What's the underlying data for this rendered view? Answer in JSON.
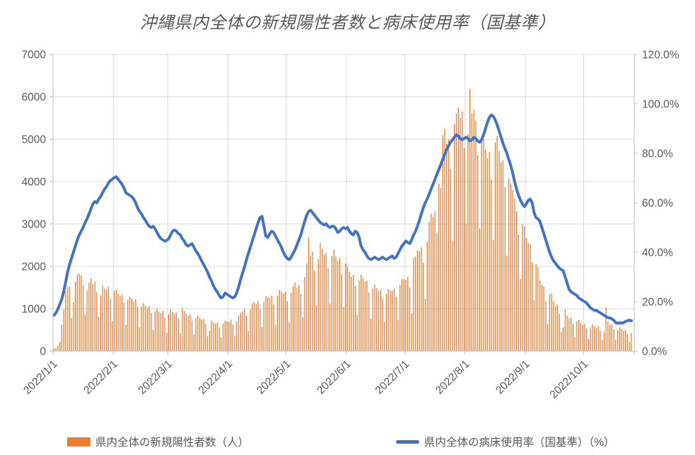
{
  "title": "沖縄県内全体の新規陽性者数と病床使用率（国基準）",
  "legend": {
    "items": [
      {
        "label": "県内全体の新規陽性者数（人）",
        "marker": "bar",
        "color": "#ED7D31"
      },
      {
        "label": "県内全体の病床使用率（国基準）（%）",
        "marker": "line",
        "color": "#4472C4"
      }
    ]
  },
  "colors": {
    "bar": "#ED7D31",
    "line": "#4472C4",
    "gridline": "#D9D9D9",
    "axis_line": "#BFBFBF",
    "tick_label": "#595959",
    "title": "#595959"
  },
  "chart_data": {
    "type": "combo (bar + line, dual axis)",
    "title": "沖縄県内全体の新規陽性者数と病床使用率（国基準）",
    "start_date": "2022/1/1",
    "n_days": 298,
    "grid": true,
    "legend_position": "bottom",
    "x_tick_labels": [
      "2022/1/1",
      "2022/2/1",
      "2022/3/1",
      "2022/4/1",
      "2022/5/1",
      "2022/6/1",
      "2022/7/1",
      "2022/8/1",
      "2022/9/1",
      "2022/10/1"
    ],
    "x_tick_day_offsets": [
      0,
      31,
      59,
      90,
      120,
      151,
      181,
      212,
      243,
      273
    ],
    "left_axis": {
      "min": 0,
      "max": 7000,
      "tick_labels": [
        "0",
        "1000",
        "2000",
        "3000",
        "4000",
        "5000",
        "6000",
        "7000"
      ]
    },
    "right_axis": {
      "min": 0,
      "max": 120,
      "tick_labels": [
        "0.0%",
        "20.0%",
        "40.0%",
        "60.0%",
        "80.0%",
        "100.0%",
        "120.0%"
      ]
    },
    "series": [
      {
        "name": "県内全体の新規陽性者数（人）",
        "type": "bar",
        "axis": "left",
        "color": "#ED7D31",
        "unit": "人",
        "values": [
          52,
          80,
          130,
          225,
          620,
          980,
          1415,
          1510,
          1530,
          780,
          1150,
          1640,
          1815,
          1830,
          1790,
          1560,
          870,
          1440,
          1620,
          1720,
          1580,
          1640,
          1390,
          815,
          1310,
          1560,
          1475,
          1445,
          1520,
          1250,
          700,
          1420,
          1450,
          1350,
          1300,
          1340,
          1150,
          620,
          1210,
          1290,
          1240,
          1175,
          1230,
          1050,
          560,
          1050,
          1130,
          1075,
          1020,
          1065,
          905,
          500,
          940,
          1010,
          930,
          905,
          950,
          790,
          430,
          870,
          985,
          920,
          880,
          910,
          770,
          420,
          1030,
          950,
          890,
          840,
          865,
          720,
          390,
          780,
          840,
          790,
          745,
          760,
          640,
          350,
          480,
          720,
          680,
          650,
          670,
          560,
          320,
          650,
          720,
          700,
          690,
          740,
          620,
          360,
          700,
          840,
          905,
          940,
          1000,
          840,
          480,
          990,
          1130,
          1160,
          1120,
          1190,
          1000,
          570,
          1160,
          1300,
          1280,
          1250,
          1310,
          1100,
          630,
          1310,
          1450,
          1400,
          1360,
          1400,
          1180,
          680,
          1380,
          1540,
          1620,
          1500,
          1560,
          1350,
          800,
          1750,
          2070,
          2680,
          2250,
          2350,
          1900,
          1080,
          2170,
          2550,
          2420,
          2270,
          2320,
          1960,
          1120,
          2250,
          2400,
          2230,
          2130,
          2200,
          1820,
          1040,
          2070,
          2000,
          1870,
          1750,
          1800,
          1540,
          860,
          1670,
          1800,
          1730,
          1640,
          1660,
          1390,
          770,
          1470,
          1570,
          1480,
          1420,
          1450,
          1240,
          690,
          1350,
          1470,
          1440,
          1420,
          1480,
          1290,
          740,
          1560,
          1700,
          1700,
          1680,
          1750,
          1500,
          890,
          2200,
          2230,
          2380,
          2360,
          2450,
          2090,
          1240,
          2580,
          3050,
          3240,
          3170,
          3300,
          2800,
          3950,
          3850,
          5100,
          5250,
          4900,
          5000,
          4300,
          2600,
          5350,
          5600,
          5750,
          5500,
          5650,
          4800,
          3000,
          5120,
          6190,
          5600,
          5700,
          5430,
          4620,
          2900,
          5030,
          5000,
          4750,
          4550,
          4700,
          4050,
          2620,
          4920,
          5080,
          4720,
          4450,
          4500,
          3870,
          2250,
          4080,
          3950,
          3800,
          3600,
          3300,
          2750,
          1700,
          3000,
          2950,
          2670,
          2560,
          2530,
          2100,
          1200,
          2050,
          1980,
          1670,
          1560,
          1520,
          1170,
          640,
          1340,
          1360,
          1170,
          1060,
          1100,
          880,
          450,
          560,
          980,
          840,
          770,
          800,
          640,
          330,
          700,
          740,
          660,
          620,
          640,
          540,
          290,
          560,
          640,
          590,
          550,
          580,
          480,
          260,
          450,
          1030,
          700,
          620,
          640,
          520,
          270,
          500,
          560,
          520,
          480,
          500,
          400,
          210,
          430
        ]
      },
      {
        "name": "県内全体の病床使用率（国基準）（%）",
        "type": "line",
        "axis": "right",
        "color": "#4472C4",
        "unit": "%",
        "values": [
          14.5,
          15.5,
          17,
          19,
          21,
          24,
          28,
          32,
          35,
          37.5,
          40,
          42.5,
          45,
          47,
          48.5,
          50,
          52,
          53.5,
          55.5,
          57.5,
          59.5,
          60.5,
          60,
          61.5,
          62.5,
          64,
          65.5,
          66.5,
          68,
          69,
          69.5,
          70.2,
          70.5,
          69.5,
          68.5,
          67.5,
          66,
          64,
          63.5,
          63,
          62.5,
          61.5,
          60,
          58,
          56.5,
          55.5,
          54,
          53,
          51.5,
          50.5,
          50,
          50.5,
          49.5,
          48,
          46.5,
          45.5,
          45,
          44.5,
          44.8,
          45.5,
          47,
          48.5,
          49,
          48.5,
          47.5,
          47,
          45.5,
          44.5,
          43,
          42.5,
          43,
          43.5,
          42,
          40.5,
          39.5,
          38,
          36.5,
          35,
          33.5,
          32,
          30,
          28.5,
          26.5,
          25,
          24,
          22.5,
          21.5,
          22,
          23.5,
          23,
          22.5,
          22,
          21.5,
          22,
          23.5,
          26,
          29,
          31.5,
          34,
          37,
          39.5,
          42,
          44.5,
          47,
          49.5,
          52,
          54,
          54.5,
          50.5,
          46.5,
          46,
          47.5,
          48.5,
          48,
          46.5,
          45,
          43.5,
          42,
          40,
          38.5,
          37.5,
          37,
          38,
          39.5,
          41,
          43,
          45,
          47,
          50,
          52.5,
          55,
          56.5,
          57,
          56,
          55,
          54,
          53,
          52,
          51.5,
          51,
          51.5,
          50.5,
          50,
          50.5,
          50.5,
          49.5,
          48,
          48.5,
          49.5,
          50,
          49.5,
          50,
          48.5,
          47.5,
          47,
          48.5,
          48,
          46,
          42.5,
          41,
          40,
          38.5,
          37.5,
          37,
          37.5,
          38,
          37.5,
          37,
          37.5,
          38,
          37.5,
          37,
          37.5,
          38,
          38.5,
          37.5,
          38,
          39.5,
          41,
          42.5,
          43.5,
          44.5,
          44,
          43.5,
          45,
          47,
          48.5,
          50.5,
          53,
          55.5,
          58,
          60,
          61.5,
          63.5,
          65.5,
          67.5,
          69.5,
          71.5,
          73.5,
          75.5,
          77.5,
          79.5,
          81.5,
          83,
          84.5,
          85.5,
          86.5,
          87.5,
          87,
          86,
          85.5,
          86,
          86.5,
          86,
          85,
          85.5,
          86.5,
          86,
          85,
          84.5,
          85.5,
          87.5,
          90,
          92.5,
          94.5,
          95.5,
          95,
          93.5,
          91.5,
          89,
          86.5,
          84,
          82,
          80,
          77.5,
          75,
          72,
          68.5,
          65.5,
          63,
          61,
          59.5,
          58.5,
          59.5,
          61,
          61.5,
          60,
          56,
          54,
          53.5,
          52.5,
          50,
          47.5,
          45,
          42.5,
          40,
          38,
          36.5,
          35.5,
          34.5,
          33.5,
          33,
          32.5,
          30,
          27.5,
          25,
          24,
          23.5,
          23,
          22.5,
          21.5,
          21,
          20.5,
          20,
          19.5,
          18.5,
          17.5,
          17,
          16.5,
          16.5,
          16,
          15.5,
          15,
          14.5,
          14,
          13.5,
          13.5,
          13,
          12.5,
          11.5,
          11.3,
          11.5,
          11.3,
          11.5,
          12,
          12.3,
          12.5,
          12.3
        ]
      }
    ]
  }
}
